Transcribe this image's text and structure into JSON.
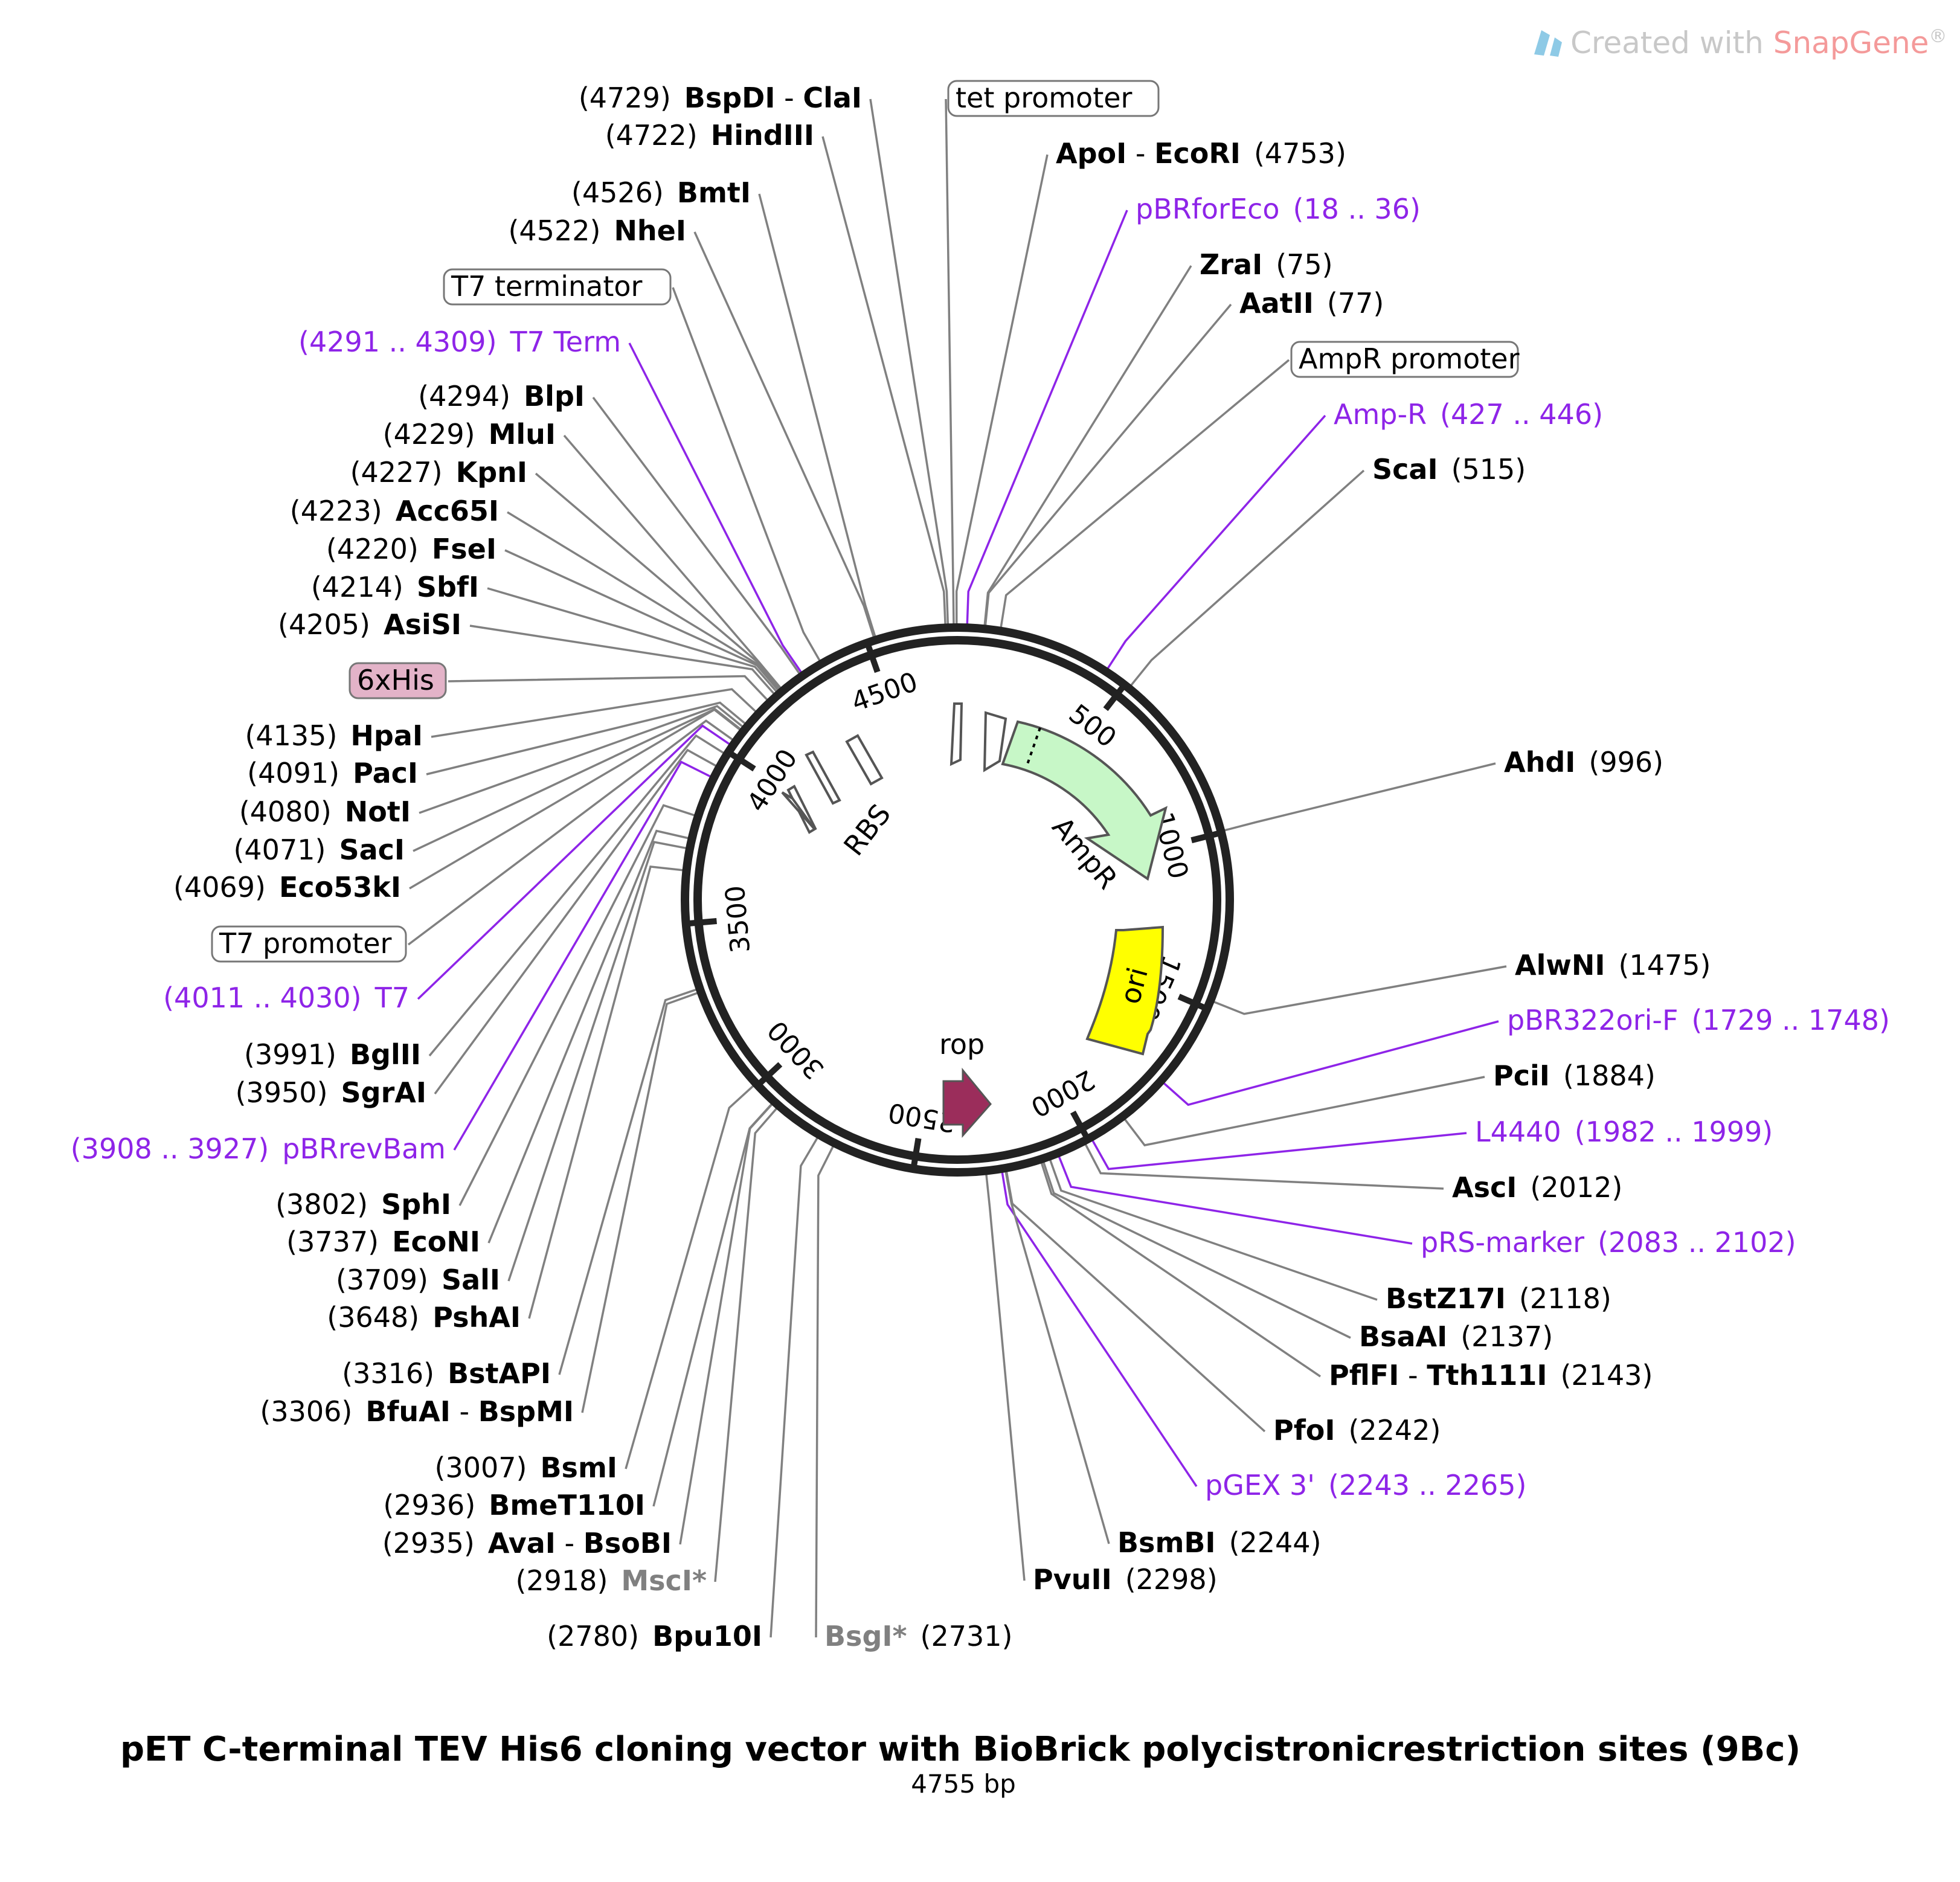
{
  "watermark": {
    "prefix": "Created with ",
    "brand": "SnapGene",
    "reg": "®"
  },
  "title": "pET C-terminal TEV His6 cloning vector with BioBrick polycistronicrestriction sites (9Bc)",
  "length_label": "4755 bp",
  "total_bp": 4755,
  "colors": {
    "backbone": "#222222",
    "primer": "#8e24e8",
    "ampr": "#c7f7c7",
    "ori": "#ffff00",
    "rop": "#9b2d5b",
    "his": "#e3b3c8",
    "leader": "#808080"
  },
  "ticks": [
    "500",
    "1000",
    "1500",
    "2000",
    "2500",
    "3000",
    "3500",
    "4000",
    "4500"
  ],
  "features": {
    "ampr": "AmpR",
    "ori": "ori",
    "rop": "rop",
    "rbs": "RBS"
  },
  "left_labels": [
    {
      "pos": "(4729)",
      "name": "BspDI",
      "sep": " - ",
      "name2": "ClaI",
      "bp": 4729,
      "kind": "enzyme"
    },
    {
      "pos": "(4722)",
      "name": "HindIII",
      "bp": 4722,
      "kind": "enzyme"
    },
    {
      "pos": "(4526)",
      "name": "BmtI",
      "bp": 4526,
      "kind": "enzyme"
    },
    {
      "pos": "(4522)",
      "name": "NheI",
      "bp": 4522,
      "kind": "enzyme"
    },
    {
      "name": "T7 terminator",
      "bp": 4360,
      "kind": "boxed"
    },
    {
      "pos": "(4291 .. 4309)",
      "name": "T7 Term",
      "bp": 4300,
      "kind": "primer"
    },
    {
      "pos": "(4294)",
      "name": "BlpI",
      "bp": 4294,
      "kind": "enzyme"
    },
    {
      "pos": "(4229)",
      "name": "MluI",
      "bp": 4229,
      "kind": "enzyme"
    },
    {
      "pos": "(4227)",
      "name": "KpnI",
      "bp": 4227,
      "kind": "enzyme"
    },
    {
      "pos": "(4223)",
      "name": "Acc65I",
      "bp": 4223,
      "kind": "enzyme"
    },
    {
      "pos": "(4220)",
      "name": "FseI",
      "bp": 4220,
      "kind": "enzyme"
    },
    {
      "pos": "(4214)",
      "name": "SbfI",
      "bp": 4214,
      "kind": "enzyme"
    },
    {
      "pos": "(4205)",
      "name": "AsiSI",
      "bp": 4205,
      "kind": "enzyme"
    },
    {
      "name": "6xHis",
      "bp": 4180,
      "kind": "his"
    },
    {
      "pos": "(4135)",
      "name": "HpaI",
      "bp": 4135,
      "kind": "enzyme"
    },
    {
      "pos": "(4091)",
      "name": "PacI",
      "bp": 4091,
      "kind": "enzyme"
    },
    {
      "pos": "(4080)",
      "name": "NotI",
      "bp": 4080,
      "kind": "enzyme"
    },
    {
      "pos": "(4071)",
      "name": "SacI",
      "bp": 4071,
      "kind": "enzyme"
    },
    {
      "pos": "(4069)",
      "name": "Eco53kI",
      "bp": 4069,
      "kind": "enzyme"
    },
    {
      "name": "T7 promoter",
      "bp": 4035,
      "kind": "boxed"
    },
    {
      "pos": "(4011 .. 4030)",
      "name": "T7",
      "bp": 4020,
      "kind": "primer"
    },
    {
      "pos": "(3991)",
      "name": "BglII",
      "bp": 3991,
      "kind": "enzyme"
    },
    {
      "pos": "(3950)",
      "name": "SgrAI",
      "bp": 3950,
      "kind": "enzyme"
    },
    {
      "pos": "(3908 .. 3927)",
      "name": "pBRrevBam",
      "bp": 3917,
      "kind": "primer"
    },
    {
      "pos": "(3802)",
      "name": "SphI",
      "bp": 3802,
      "kind": "enzyme"
    },
    {
      "pos": "(3737)",
      "name": "EcoNI",
      "bp": 3737,
      "kind": "enzyme"
    },
    {
      "pos": "(3709)",
      "name": "SalI",
      "bp": 3709,
      "kind": "enzyme"
    },
    {
      "pos": "(3648)",
      "name": "PshAI",
      "bp": 3648,
      "kind": "enzyme"
    },
    {
      "pos": "(3316)",
      "name": "BstAPI",
      "bp": 3316,
      "kind": "enzyme"
    },
    {
      "pos": "(3306)",
      "name": "BfuAI",
      "sep": " - ",
      "name2": "BspMI",
      "bp": 3306,
      "kind": "enzyme"
    },
    {
      "pos": "(3007)",
      "name": "BsmI",
      "bp": 3007,
      "kind": "enzyme"
    },
    {
      "pos": "(2936)",
      "name": "BmeT110I",
      "bp": 2936,
      "kind": "enzyme"
    },
    {
      "pos": "(2935)",
      "name": "AvaI",
      "sep": " - ",
      "name2": "BsoBI",
      "bp": 2935,
      "kind": "enzyme"
    },
    {
      "pos": "(2918)",
      "name": "MscI*",
      "bp": 2918,
      "kind": "grey"
    },
    {
      "pos": "(2780)",
      "name": "Bpu10I",
      "bp": 2780,
      "kind": "enzyme"
    }
  ],
  "right_labels": [
    {
      "name": "tet promoter",
      "bp": 4745,
      "kind": "boxed"
    },
    {
      "name": "ApoI",
      "sep": " - ",
      "name2": "EcoRI",
      "pos": "(4753)",
      "bp": 4753,
      "kind": "enzyme"
    },
    {
      "name": "pBRforEco",
      "pos": "(18 .. 36)",
      "bp": 27,
      "kind": "primer"
    },
    {
      "name": "ZraI",
      "pos": "(75)",
      "bp": 75,
      "kind": "enzyme"
    },
    {
      "name": "AatII",
      "pos": "(77)",
      "bp": 77,
      "kind": "enzyme"
    },
    {
      "name": "AmpR promoter",
      "bp": 120,
      "kind": "boxed"
    },
    {
      "name": "Amp-R",
      "pos": "(427 .. 446)",
      "bp": 436,
      "kind": "primer"
    },
    {
      "name": "ScaI",
      "pos": "(515)",
      "bp": 515,
      "kind": "enzyme"
    },
    {
      "name": "AhdI",
      "pos": "(996)",
      "bp": 996,
      "kind": "enzyme"
    },
    {
      "name": "AlwNI",
      "pos": "(1475)",
      "bp": 1475,
      "kind": "enzyme"
    },
    {
      "name": "pBR322ori-F",
      "pos": "(1729 .. 1748)",
      "bp": 1738,
      "kind": "primer"
    },
    {
      "name": "PciI",
      "pos": "(1884)",
      "bp": 1884,
      "kind": "enzyme"
    },
    {
      "name": "L4440",
      "pos": "(1982 .. 1999)",
      "bp": 1990,
      "kind": "primer"
    },
    {
      "name": "AscI",
      "pos": "(2012)",
      "bp": 2012,
      "kind": "enzyme"
    },
    {
      "name": "pRS-marker",
      "pos": "(2083 .. 2102)",
      "bp": 2092,
      "kind": "primer"
    },
    {
      "name": "BstZ17I",
      "pos": "(2118)",
      "bp": 2118,
      "kind": "enzyme"
    },
    {
      "name": "BsaAI",
      "pos": "(2137)",
      "bp": 2137,
      "kind": "enzyme"
    },
    {
      "name": "PflFI",
      "sep": " - ",
      "name2": "Tth111I",
      "pos": "(2143)",
      "bp": 2143,
      "kind": "enzyme"
    },
    {
      "name": "PfoI",
      "pos": "(2242)",
      "bp": 2242,
      "kind": "enzyme"
    },
    {
      "name": "pGEX 3'",
      "pos": "(2243 .. 2265)",
      "bp": 2254,
      "kind": "primer"
    },
    {
      "name": "BsmBI",
      "pos": "(2244)",
      "bp": 2244,
      "kind": "enzyme"
    },
    {
      "name": "PvuII",
      "pos": "(2298)",
      "bp": 2298,
      "kind": "enzyme"
    },
    {
      "name": "BsgI*",
      "pos": "(2731)",
      "bp": 2731,
      "kind": "grey"
    }
  ]
}
